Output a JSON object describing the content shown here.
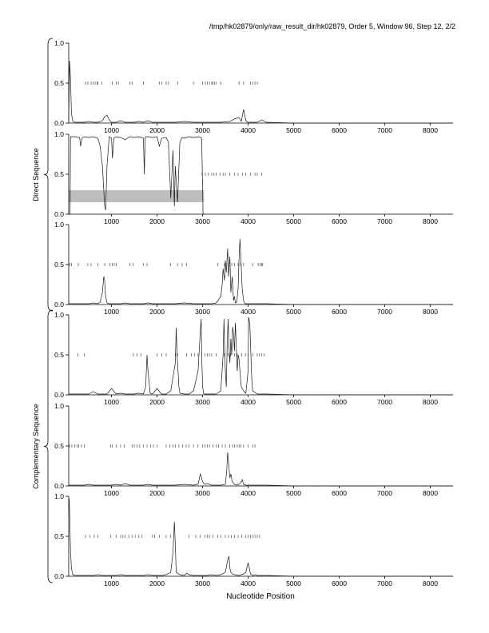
{
  "header": {
    "title": "/tmp/hk02879/only/raw_result_dir/hk02879, Order 5, Window 96, Step 12, 2/2"
  },
  "groups": [
    {
      "label": "Direct Sequence",
      "panels": [
        0,
        1,
        2
      ]
    },
    {
      "label": "Complementary Sequence",
      "panels": [
        3,
        4,
        5
      ]
    }
  ],
  "xaxis": {
    "label": "Nucleotide Position",
    "ticks": [
      1000,
      2000,
      3000,
      4000,
      5000,
      6000,
      7000,
      8000
    ],
    "range": [
      60,
      8500
    ]
  },
  "yaxis": {
    "ticks": [
      0.0,
      0.5,
      1.0
    ],
    "tick_labels": [
      "0.0",
      "0.5",
      "1.0"
    ],
    "range": [
      0,
      1
    ]
  },
  "chart_data": [
    {
      "type": "line",
      "panel": 1,
      "group": "Direct Sequence",
      "x": [
        60,
        80,
        100,
        120,
        150,
        200,
        300,
        400,
        500,
        600,
        700,
        800,
        850,
        900,
        950,
        1000,
        1100,
        1200,
        1300,
        1400,
        1500,
        1600,
        1700,
        1800,
        1900,
        2000,
        2200,
        2400,
        2600,
        2800,
        3000,
        3200,
        3400,
        3600,
        3700,
        3800,
        3850,
        3900,
        3950,
        4000,
        4100,
        4200,
        4300,
        4400,
        5000,
        6000,
        7000,
        8000,
        8500
      ],
      "y": [
        0.02,
        0.78,
        0.55,
        0.12,
        0.02,
        0.01,
        0.01,
        0.01,
        0.02,
        0.01,
        0.01,
        0.03,
        0.08,
        0.1,
        0.04,
        0.01,
        0.01,
        0.03,
        0.01,
        0.01,
        0.01,
        0.02,
        0.01,
        0.03,
        0.01,
        0.01,
        0.01,
        0.01,
        0.02,
        0.01,
        0.01,
        0.01,
        0.01,
        0.02,
        0.05,
        0.07,
        0.02,
        0.17,
        0.03,
        0.01,
        0.01,
        0.01,
        0.04,
        0.01,
        0.0,
        0.0,
        0.0,
        0.0,
        0.0
      ],
      "marks": [
        430,
        480,
        550,
        600,
        640,
        680,
        700,
        790,
        1020,
        1100,
        1150,
        1400,
        1450,
        1700,
        2050,
        2100,
        2200,
        2250,
        2450,
        2800,
        3000,
        3060,
        3100,
        3150,
        3200,
        3230,
        3260,
        3300,
        3400,
        3800,
        3900,
        4050,
        4100,
        4150,
        4200
      ]
    },
    {
      "type": "line",
      "panel": 2,
      "group": "Direct Sequence",
      "x": [
        60,
        90,
        100,
        200,
        300,
        320,
        350,
        400,
        500,
        600,
        700,
        750,
        800,
        850,
        870,
        900,
        950,
        1000,
        1020,
        1050,
        1100,
        1200,
        1300,
        1400,
        1500,
        1600,
        1700,
        1720,
        1740,
        1760,
        1800,
        1900,
        2000,
        2050,
        2100,
        2200,
        2250,
        2300,
        2350,
        2380,
        2400,
        2450,
        2500,
        2550,
        2600,
        2700,
        2800,
        2900,
        2950,
        2980,
        3000,
        3010,
        3050
      ],
      "y": [
        0.0,
        0.0,
        0.97,
        0.97,
        0.96,
        0.85,
        0.95,
        0.97,
        0.96,
        0.97,
        0.95,
        0.85,
        0.6,
        0.1,
        0.05,
        0.6,
        0.97,
        0.95,
        0.7,
        0.95,
        0.97,
        0.96,
        0.93,
        0.97,
        0.96,
        0.97,
        0.95,
        0.5,
        0.96,
        0.97,
        0.97,
        0.96,
        0.97,
        0.85,
        0.95,
        0.96,
        0.9,
        0.2,
        0.8,
        0.1,
        0.6,
        0.15,
        0.9,
        0.96,
        0.95,
        0.97,
        0.96,
        0.97,
        0.96,
        0.95,
        0.3,
        0.0,
        0.0
      ],
      "marks": [
        2990,
        3060,
        3120,
        3200,
        3250,
        3300,
        3380,
        3450,
        3500,
        3600,
        3700,
        3780,
        3880,
        3950,
        4050,
        4150,
        4200,
        4300
      ],
      "highlight": {
        "from": 60,
        "to": 3030,
        "ymin": 0.15,
        "ymax": 0.3
      }
    },
    {
      "type": "line",
      "panel": 3,
      "group": "Direct Sequence",
      "x": [
        60,
        100,
        200,
        300,
        400,
        500,
        600,
        700,
        750,
        800,
        830,
        850,
        870,
        900,
        950,
        1000,
        1100,
        1200,
        1300,
        1400,
        1500,
        1600,
        1700,
        1800,
        1900,
        2000,
        2200,
        2400,
        2600,
        2800,
        3000,
        3200,
        3300,
        3400,
        3430,
        3450,
        3480,
        3500,
        3520,
        3550,
        3570,
        3600,
        3620,
        3650,
        3680,
        3700,
        3720,
        3750,
        3780,
        3800,
        3820,
        3850,
        3870,
        3900,
        3930,
        4000,
        4100,
        4200,
        4400,
        5000,
        6000,
        7000,
        8000,
        8500
      ],
      "y": [
        0.01,
        0.01,
        0.01,
        0.01,
        0.01,
        0.01,
        0.02,
        0.01,
        0.03,
        0.15,
        0.35,
        0.3,
        0.1,
        0.02,
        0.01,
        0.01,
        0.01,
        0.01,
        0.02,
        0.01,
        0.01,
        0.01,
        0.01,
        0.02,
        0.01,
        0.01,
        0.01,
        0.01,
        0.02,
        0.01,
        0.01,
        0.01,
        0.02,
        0.1,
        0.25,
        0.45,
        0.3,
        0.55,
        0.4,
        0.7,
        0.35,
        0.6,
        0.15,
        0.35,
        0.05,
        0.1,
        0.02,
        0.03,
        0.2,
        0.55,
        0.82,
        0.45,
        0.2,
        0.05,
        0.01,
        0.01,
        0.01,
        0.01,
        0.01,
        0.0,
        0.0,
        0.0,
        0.0,
        0.0
      ],
      "marks": [
        80,
        120,
        270,
        480,
        550,
        700,
        850,
        960,
        1020,
        1060,
        1100,
        1400,
        1470,
        1700,
        1780,
        2300,
        2450,
        2550,
        2650,
        3330,
        3480,
        3560,
        3640,
        3700,
        3780,
        3840,
        3900,
        4100,
        4220,
        4260,
        4300,
        4320
      ]
    },
    {
      "type": "line",
      "panel": 4,
      "group": "Complementary Sequence",
      "x": [
        60,
        200,
        400,
        500,
        600,
        700,
        800,
        900,
        1000,
        1100,
        1200,
        1300,
        1400,
        1500,
        1600,
        1700,
        1750,
        1780,
        1800,
        1850,
        1900,
        2000,
        2050,
        2100,
        2200,
        2300,
        2400,
        2420,
        2440,
        2460,
        2480,
        2500,
        2600,
        2700,
        2800,
        2900,
        2950,
        2970,
        2980,
        3000,
        3020,
        3050,
        3100,
        3200,
        3300,
        3400,
        3450,
        3470,
        3480,
        3500,
        3520,
        3540,
        3560,
        3580,
        3600,
        3620,
        3640,
        3660,
        3680,
        3700,
        3720,
        3740,
        3760,
        3780,
        3800,
        3820,
        3850,
        3900,
        3950,
        4000,
        4010,
        4020,
        4040,
        4060,
        4080,
        4100,
        4200,
        4300,
        4400,
        5000,
        6000,
        7000,
        8000,
        8500
      ],
      "y": [
        0.01,
        0.01,
        0.01,
        0.01,
        0.04,
        0.01,
        0.01,
        0.01,
        0.08,
        0.01,
        0.02,
        0.01,
        0.01,
        0.01,
        0.02,
        0.01,
        0.1,
        0.5,
        0.3,
        0.02,
        0.01,
        0.08,
        0.04,
        0.01,
        0.01,
        0.05,
        0.4,
        0.84,
        0.5,
        0.3,
        0.1,
        0.02,
        0.01,
        0.01,
        0.05,
        0.3,
        0.8,
        0.95,
        0.5,
        0.1,
        0.02,
        0.01,
        0.01,
        0.01,
        0.01,
        0.05,
        0.5,
        0.95,
        0.7,
        0.3,
        0.1,
        0.6,
        0.95,
        0.6,
        0.4,
        0.7,
        0.5,
        0.85,
        0.75,
        0.55,
        0.9,
        0.6,
        0.3,
        0.5,
        0.45,
        0.3,
        0.1,
        0.05,
        0.02,
        0.3,
        0.97,
        0.95,
        0.85,
        0.5,
        0.2,
        0.05,
        0.01,
        0.01,
        0.01,
        0.0,
        0.0,
        0.0,
        0.0,
        0.0
      ],
      "marks": [
        260,
        400,
        1480,
        1560,
        1650,
        2000,
        2100,
        2200,
        2400,
        2450,
        2650,
        2750,
        2820,
        2900,
        3050,
        3100,
        3150,
        3200,
        3300,
        3470,
        3560,
        3620,
        3700,
        3760,
        3860,
        3940,
        4000,
        4100,
        4200,
        4250,
        4300,
        4350
      ]
    },
    {
      "type": "line",
      "panel": 5,
      "group": "Complementary Sequence",
      "x": [
        60,
        200,
        300,
        400,
        500,
        600,
        800,
        1000,
        1100,
        1200,
        1300,
        1400,
        1500,
        1600,
        1700,
        1800,
        1900,
        2000,
        2200,
        2400,
        2600,
        2800,
        2900,
        2950,
        2970,
        3000,
        3050,
        3100,
        3150,
        3200,
        3300,
        3400,
        3500,
        3530,
        3550,
        3570,
        3600,
        3620,
        3650,
        3700,
        3750,
        3800,
        3850,
        3870,
        3900,
        3950,
        4000,
        4100,
        4200,
        4400,
        5000,
        6000,
        7000,
        8000,
        8500
      ],
      "y": [
        0.01,
        0.01,
        0.01,
        0.01,
        0.02,
        0.01,
        0.01,
        0.01,
        0.02,
        0.01,
        0.03,
        0.01,
        0.01,
        0.01,
        0.01,
        0.02,
        0.01,
        0.01,
        0.01,
        0.01,
        0.02,
        0.01,
        0.02,
        0.15,
        0.12,
        0.05,
        0.02,
        0.03,
        0.02,
        0.01,
        0.01,
        0.01,
        0.02,
        0.2,
        0.42,
        0.3,
        0.1,
        0.15,
        0.05,
        0.02,
        0.01,
        0.02,
        0.05,
        0.08,
        0.02,
        0.01,
        0.01,
        0.01,
        0.01,
        0.01,
        0.0,
        0.0,
        0.0,
        0.0,
        0.0
      ],
      "marks": [
        80,
        130,
        190,
        240,
        280,
        340,
        400,
        980,
        1020,
        1100,
        1200,
        1280,
        1450,
        1500,
        1560,
        1620,
        1700,
        1780,
        1860,
        1920,
        2000,
        2200,
        2280,
        2350,
        2400,
        2480,
        2560,
        2640,
        2700,
        2800,
        2900,
        3000,
        3050,
        3100,
        3150,
        3230,
        3300,
        3350,
        3430,
        3500,
        3600,
        3660,
        3700,
        3760,
        3800,
        3840,
        3900,
        4000,
        4100,
        4150
      ]
    },
    {
      "type": "line",
      "panel": 6,
      "group": "Complementary Sequence",
      "x": [
        60,
        70,
        80,
        100,
        120,
        150,
        200,
        300,
        400,
        500,
        600,
        700,
        800,
        900,
        1000,
        1100,
        1200,
        1300,
        1400,
        1500,
        1600,
        1700,
        1800,
        1900,
        2000,
        2100,
        2200,
        2300,
        2350,
        2380,
        2400,
        2420,
        2500,
        2600,
        2650,
        2700,
        2800,
        2900,
        3000,
        3100,
        3200,
        3300,
        3400,
        3500,
        3550,
        3580,
        3600,
        3620,
        3650,
        3700,
        3800,
        3900,
        3950,
        4000,
        4020,
        4050,
        4100,
        4150,
        4200,
        4400,
        5000,
        6000,
        7000,
        8000,
        8500
      ],
      "y": [
        0.9,
        0.97,
        0.8,
        0.3,
        0.1,
        0.02,
        0.01,
        0.01,
        0.01,
        0.01,
        0.01,
        0.02,
        0.01,
        0.01,
        0.01,
        0.01,
        0.02,
        0.01,
        0.01,
        0.01,
        0.01,
        0.01,
        0.02,
        0.01,
        0.01,
        0.01,
        0.02,
        0.05,
        0.3,
        0.68,
        0.4,
        0.05,
        0.02,
        0.01,
        0.04,
        0.02,
        0.01,
        0.01,
        0.01,
        0.01,
        0.02,
        0.01,
        0.02,
        0.05,
        0.2,
        0.25,
        0.1,
        0.05,
        0.03,
        0.02,
        0.01,
        0.03,
        0.05,
        0.17,
        0.12,
        0.03,
        0.01,
        0.02,
        0.01,
        0.01,
        0.0,
        0.0,
        0.0,
        0.0,
        0.0
      ],
      "marks": [
        430,
        530,
        620,
        700,
        980,
        1100,
        1200,
        1250,
        1300,
        1380,
        1450,
        1520,
        1600,
        1670,
        1900,
        1950,
        2050,
        2200,
        2300,
        2700,
        2850,
        2950,
        3050,
        3100,
        3150,
        3230,
        3330,
        3400,
        3500,
        3570,
        3630,
        3700,
        3780,
        3860,
        3950,
        4000,
        4050,
        4100,
        4150,
        4200,
        4250
      ]
    }
  ],
  "style": {
    "line_color": "#1a1a1a",
    "mark_color": "#333333",
    "highlight_color": "#bdbdbd",
    "axis_color": "#000000"
  }
}
